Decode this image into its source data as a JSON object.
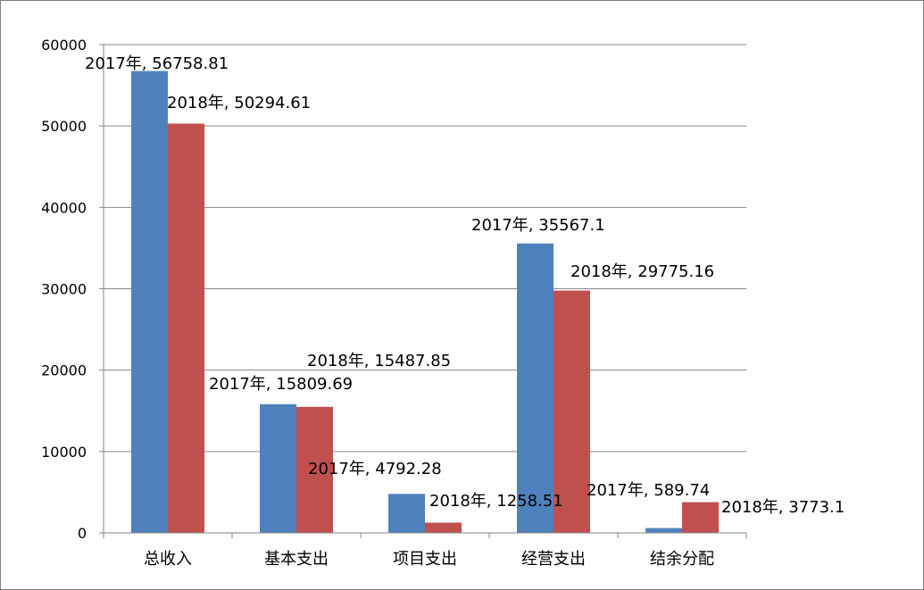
{
  "chart_data": {
    "type": "bar",
    "categories": [
      "总收入",
      "基本支出",
      "项目支出",
      "经营支出",
      "结余分配"
    ],
    "series": [
      {
        "name": "2017年",
        "color": "#4f81bd",
        "values": [
          56758.81,
          15809.69,
          4792.28,
          35567.1,
          589.74
        ]
      },
      {
        "name": "2018年",
        "color": "#c0504d",
        "values": [
          50294.61,
          15487.85,
          1258.51,
          29775.16,
          3773.1
        ]
      }
    ],
    "data_labels": [
      [
        "2017年, 56758.81",
        "2017年, 15809.69",
        "2017年, 4792.28",
        "2017年, 35567.1",
        "2017年, 589.74"
      ],
      [
        "2018年, 50294.61",
        "2018年, 15487.85",
        "2018年, 1258.51",
        "2018年, 29775.16",
        "2018年, 3773.1"
      ]
    ],
    "y_ticks": [
      "0",
      "10000",
      "20000",
      "30000",
      "40000",
      "50000",
      "60000"
    ],
    "ylim": [
      0,
      60000
    ],
    "grid": true,
    "legend": "none"
  }
}
